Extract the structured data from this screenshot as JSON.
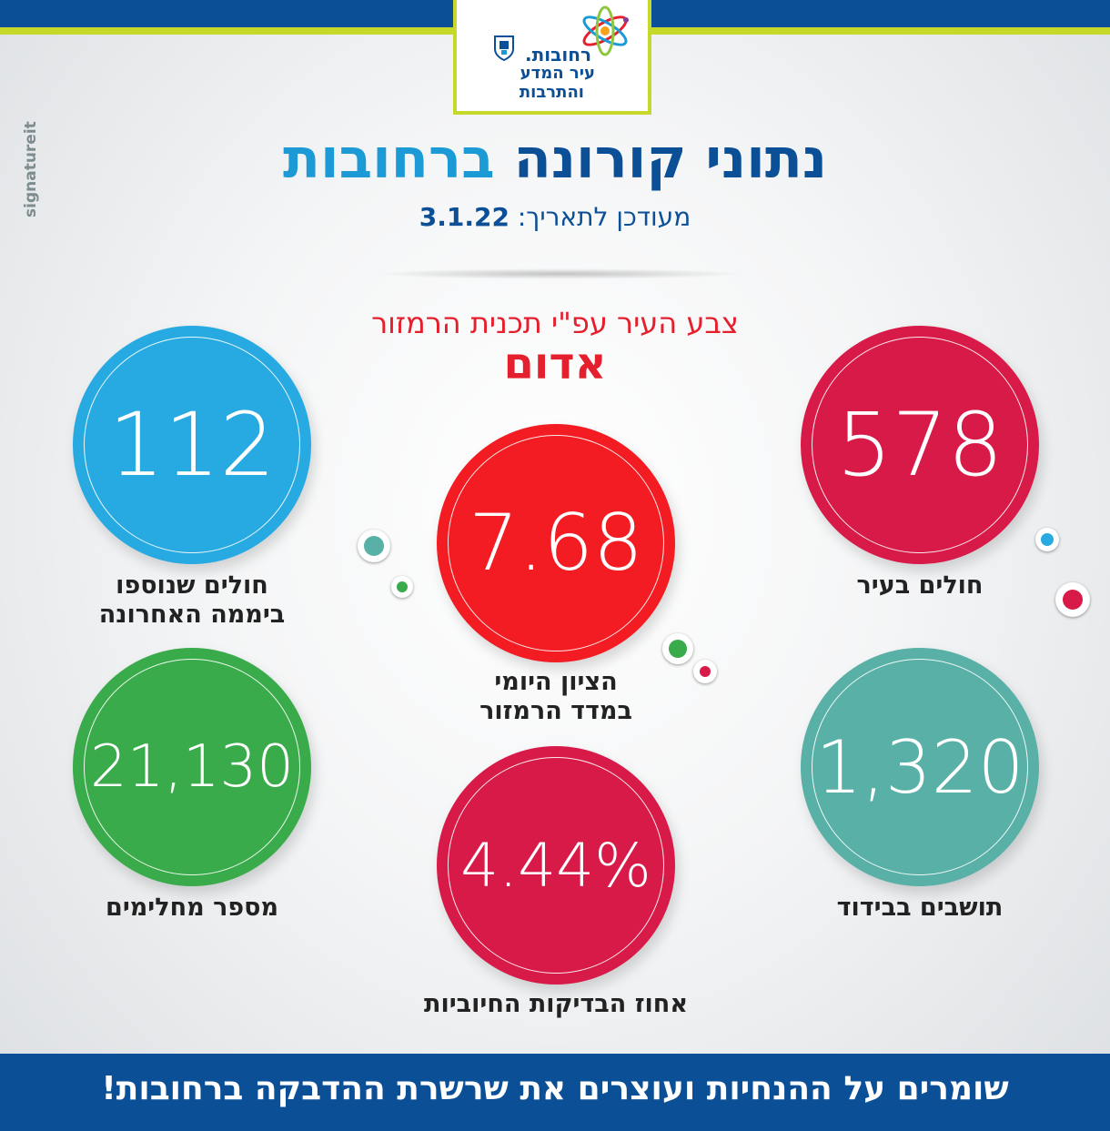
{
  "header": {
    "logo": {
      "city_name": "רחובות.",
      "tagline_1": "עיר המדע",
      "tagline_2": "והתרבות"
    },
    "brand_vertical": "signatureit"
  },
  "title": {
    "part_1": "נתוני קורונה",
    "part_2": "ברחובות"
  },
  "updated": {
    "label": "מעודכן לתאריך:",
    "date": "3.1.22"
  },
  "city_color": {
    "label": "צבע העיר עפ\"י תכנית הרמזור",
    "value": "אדום"
  },
  "stats": {
    "sick_in_city": {
      "value": "578",
      "label_1": "חולים בעיר",
      "color": "#d81a48"
    },
    "new_sick_24h": {
      "value": "112",
      "label_1": "חולים שנוספו",
      "label_2": "ביממה האחרונה",
      "color": "#27aae1"
    },
    "traffic_light_score": {
      "value": "7.68",
      "label_1": "הציון היומי",
      "label_2": "במדד הרמזור",
      "color": "#f21c22"
    },
    "isolated": {
      "value": "1,320",
      "label_1": "תושבים בבידוד",
      "color": "#58b0a6"
    },
    "recovered": {
      "value": "21,130",
      "label_1": "מספר מחלימים",
      "color": "#3aab4a"
    },
    "positive_rate": {
      "value": "4.44%",
      "label_1": "אחוז הבדיקות החיוביות",
      "color": "#d81a48"
    }
  },
  "footer": {
    "slogan": "שומרים על ההנחיות ועוצרים את שרשרת ההדבקה ברחובות!"
  },
  "colors": {
    "navy": "#0b4f96",
    "lime": "#c6d92b",
    "light_blue": "#1b9ad6",
    "red": "#e5202e"
  }
}
